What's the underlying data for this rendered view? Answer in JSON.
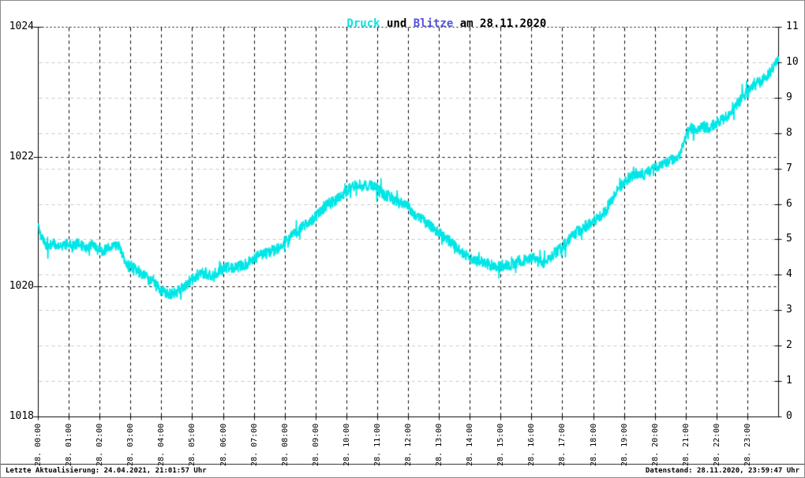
{
  "title": {
    "series1": "Druck",
    "connector": " und ",
    "series2": "Blitze",
    "suffix": " am 28.11.2020",
    "full": "Druck und Blitze am 28.11.2020"
  },
  "footer": {
    "last_update": "Letzte Aktualisierung: 24.04.2021, 21:01:57 Uhr",
    "data_state": "Datenstand: 28.11.2020, 23:59:47 Uhr"
  },
  "colors": {
    "pressure_line": "#00e6e6",
    "lightning_label": "#5353dd",
    "grid_black": "#000000",
    "grid_gray": "#c9c9c9",
    "frame": "#000000",
    "outer_border": "#8a8a8a",
    "background": "#ffffff"
  },
  "chart_data": {
    "type": "line",
    "title": "Druck und Blitze am 28.11.2020",
    "x": {
      "unit": "hour of 28.11.2020",
      "range": [
        0,
        24
      ],
      "tick_hours": [
        0,
        1,
        2,
        3,
        4,
        5,
        6,
        7,
        8,
        9,
        10,
        11,
        12,
        13,
        14,
        15,
        16,
        17,
        18,
        19,
        20,
        21,
        22,
        23
      ],
      "tick_labels": [
        "28. 00:00",
        "28. 01:00",
        "28. 02:00",
        "28. 03:00",
        "28. 04:00",
        "28. 05:00",
        "28. 06:00",
        "28. 07:00",
        "28. 08:00",
        "28. 09:00",
        "28. 10:00",
        "28. 11:00",
        "28. 12:00",
        "28. 13:00",
        "28. 14:00",
        "28. 15:00",
        "28. 16:00",
        "28. 17:00",
        "28. 18:00",
        "28. 19:00",
        "28. 20:00",
        "28. 21:00",
        "28. 22:00",
        "28. 23:00"
      ]
    },
    "y_left": {
      "name": "Druck",
      "range": [
        1018,
        1024
      ],
      "tick_values": [
        1018,
        1020,
        1022,
        1024
      ],
      "tick_labels": [
        "1018",
        "1020",
        "1022",
        "1024"
      ],
      "grid_values": [
        1020,
        1022,
        1024
      ]
    },
    "y_right": {
      "name": "Blitze",
      "range": [
        0,
        11
      ],
      "tick_values": [
        0,
        1,
        2,
        3,
        4,
        5,
        6,
        7,
        8,
        9,
        10,
        11
      ],
      "tick_labels": [
        "0",
        "1",
        "2",
        "3",
        "4",
        "5",
        "6",
        "7",
        "8",
        "9",
        "10",
        "11"
      ],
      "grid_values": [
        1,
        2,
        3,
        4,
        5,
        6,
        7,
        8,
        9,
        10
      ]
    },
    "series": [
      {
        "name": "Druck",
        "axis": "left",
        "color": "#00e6e6",
        "style": "noisy-line",
        "noise_amplitude": 0.085,
        "anchor_points": [
          [
            0.0,
            1020.9
          ],
          [
            0.15,
            1020.72
          ],
          [
            0.3,
            1020.62
          ],
          [
            0.5,
            1020.68
          ],
          [
            0.7,
            1020.6
          ],
          [
            0.9,
            1020.66
          ],
          [
            1.1,
            1020.62
          ],
          [
            1.3,
            1020.68
          ],
          [
            1.5,
            1020.6
          ],
          [
            1.7,
            1020.64
          ],
          [
            1.9,
            1020.58
          ],
          [
            2.1,
            1020.55
          ],
          [
            2.35,
            1020.62
          ],
          [
            2.6,
            1020.65
          ],
          [
            2.75,
            1020.45
          ],
          [
            2.9,
            1020.33
          ],
          [
            3.1,
            1020.3
          ],
          [
            3.3,
            1020.22
          ],
          [
            3.5,
            1020.15
          ],
          [
            3.75,
            1020.05
          ],
          [
            4.0,
            1019.95
          ],
          [
            4.2,
            1019.9
          ],
          [
            4.45,
            1019.9
          ],
          [
            4.65,
            1019.98
          ],
          [
            4.85,
            1020.06
          ],
          [
            5.0,
            1020.12
          ],
          [
            5.2,
            1020.2
          ],
          [
            5.4,
            1020.22
          ],
          [
            5.6,
            1020.17
          ],
          [
            5.8,
            1020.22
          ],
          [
            6.0,
            1020.28
          ],
          [
            6.2,
            1020.3
          ],
          [
            6.5,
            1020.32
          ],
          [
            6.75,
            1020.35
          ],
          [
            7.0,
            1020.45
          ],
          [
            7.2,
            1020.48
          ],
          [
            7.4,
            1020.52
          ],
          [
            7.6,
            1020.55
          ],
          [
            7.8,
            1020.6
          ],
          [
            8.0,
            1020.68
          ],
          [
            8.2,
            1020.78
          ],
          [
            8.4,
            1020.86
          ],
          [
            8.6,
            1020.95
          ],
          [
            8.8,
            1021.0
          ],
          [
            9.0,
            1021.08
          ],
          [
            9.2,
            1021.18
          ],
          [
            9.4,
            1021.28
          ],
          [
            9.6,
            1021.32
          ],
          [
            9.8,
            1021.4
          ],
          [
            10.0,
            1021.48
          ],
          [
            10.2,
            1021.55
          ],
          [
            10.4,
            1021.58
          ],
          [
            10.6,
            1021.55
          ],
          [
            10.8,
            1021.55
          ],
          [
            11.0,
            1021.5
          ],
          [
            11.2,
            1021.42
          ],
          [
            11.4,
            1021.4
          ],
          [
            11.6,
            1021.32
          ],
          [
            11.8,
            1021.28
          ],
          [
            12.0,
            1021.22
          ],
          [
            12.2,
            1021.12
          ],
          [
            12.4,
            1021.05
          ],
          [
            12.6,
            1020.98
          ],
          [
            12.8,
            1020.9
          ],
          [
            13.0,
            1020.85
          ],
          [
            13.2,
            1020.75
          ],
          [
            13.4,
            1020.68
          ],
          [
            13.6,
            1020.6
          ],
          [
            13.8,
            1020.52
          ],
          [
            14.0,
            1020.45
          ],
          [
            14.2,
            1020.4
          ],
          [
            14.4,
            1020.38
          ],
          [
            14.6,
            1020.35
          ],
          [
            14.8,
            1020.32
          ],
          [
            15.0,
            1020.3
          ],
          [
            15.2,
            1020.33
          ],
          [
            15.4,
            1020.36
          ],
          [
            15.6,
            1020.4
          ],
          [
            15.8,
            1020.42
          ],
          [
            16.0,
            1020.45
          ],
          [
            16.2,
            1020.4
          ],
          [
            16.4,
            1020.38
          ],
          [
            16.6,
            1020.45
          ],
          [
            16.8,
            1020.55
          ],
          [
            17.0,
            1020.62
          ],
          [
            17.2,
            1020.72
          ],
          [
            17.4,
            1020.82
          ],
          [
            17.6,
            1020.9
          ],
          [
            17.8,
            1020.95
          ],
          [
            18.0,
            1021.0
          ],
          [
            18.2,
            1021.1
          ],
          [
            18.4,
            1021.15
          ],
          [
            18.6,
            1021.35
          ],
          [
            18.8,
            1021.5
          ],
          [
            19.0,
            1021.62
          ],
          [
            19.2,
            1021.7
          ],
          [
            19.4,
            1021.75
          ],
          [
            19.6,
            1021.72
          ],
          [
            19.8,
            1021.78
          ],
          [
            20.0,
            1021.85
          ],
          [
            20.2,
            1021.9
          ],
          [
            20.4,
            1021.92
          ],
          [
            20.6,
            1021.98
          ],
          [
            20.8,
            1022.05
          ],
          [
            21.0,
            1022.3
          ],
          [
            21.15,
            1022.45
          ],
          [
            21.3,
            1022.4
          ],
          [
            21.5,
            1022.48
          ],
          [
            21.7,
            1022.45
          ],
          [
            21.9,
            1022.5
          ],
          [
            22.1,
            1022.55
          ],
          [
            22.3,
            1022.62
          ],
          [
            22.5,
            1022.7
          ],
          [
            22.7,
            1022.85
          ],
          [
            22.9,
            1022.95
          ],
          [
            23.1,
            1023.05
          ],
          [
            23.3,
            1023.12
          ],
          [
            23.5,
            1023.2
          ],
          [
            23.7,
            1023.3
          ],
          [
            23.85,
            1023.38
          ],
          [
            24.0,
            1023.52
          ]
        ]
      },
      {
        "name": "Blitze",
        "axis": "right",
        "color": "#5353dd",
        "style": "none-visible",
        "values": []
      }
    ],
    "legend": "in-title",
    "grid": {
      "vertical": "black dashed at every hour",
      "horizontal_black": "left-axis majors 1020/1022 dashed, 1024 dotted top",
      "horizontal_gray": "right-axis integers 1..10 dashed"
    }
  }
}
